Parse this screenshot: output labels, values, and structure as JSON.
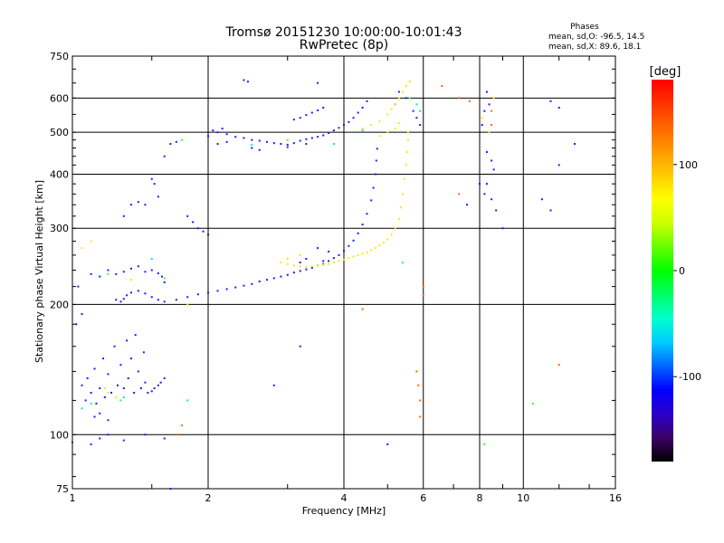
{
  "chart_data": {
    "type": "scatter",
    "title": "Tromsø 20151230 10:00:00-10:01:43",
    "subtitle": "RwPretec (8p)",
    "xlabel": "Frequency [MHz]",
    "ylabel": "Stationary phase Virtual Height [km]",
    "x_scale": "log",
    "y_scale": "log",
    "xlim": [
      1,
      16
    ],
    "ylim": [
      75,
      750
    ],
    "x_ticks": [
      1,
      2,
      4,
      6,
      8,
      10,
      16
    ],
    "x_tick_labels": [
      "1",
      "2",
      "4",
      "6",
      "8",
      "10",
      "16"
    ],
    "y_ticks": [
      75,
      100,
      200,
      300,
      400,
      500,
      600,
      750
    ],
    "y_tick_labels": [
      "75",
      "100",
      "200",
      "300",
      "400",
      "500",
      "600",
      "750"
    ],
    "grid": true,
    "stats": {
      "heading": "Phases",
      "line1": "mean, sd,O:  -96.5, 14.5",
      "line2": "mean, sd,X:  89.6, 18.1"
    },
    "colorbar": {
      "label": "[deg]",
      "range": [
        -180,
        180
      ],
      "ticks": [
        100,
        0,
        -100
      ],
      "tick_labels": [
        "100",
        "0",
        "-100"
      ],
      "colors": [
        "#000000",
        "#3d0066",
        "#2a00cc",
        "#0000ff",
        "#0066ff",
        "#00ccff",
        "#00ffcc",
        "#00ff66",
        "#00ff00",
        "#66ff00",
        "#ccff00",
        "#ffff00",
        "#ffcc00",
        "#ff9900",
        "#ff6600",
        "#ff3300",
        "#ff0000"
      ]
    },
    "series": [
      {
        "color": "#1a1aff",
        "phase": -100,
        "points": [
          [
            1.25,
            205
          ],
          [
            1.28,
            203
          ],
          [
            1.3,
            206
          ],
          [
            1.32,
            210
          ],
          [
            1.35,
            213
          ],
          [
            1.4,
            215
          ],
          [
            1.45,
            212
          ],
          [
            1.5,
            208
          ],
          [
            1.55,
            205
          ],
          [
            1.6,
            203
          ],
          [
            1.7,
            205
          ],
          [
            1.8,
            208
          ],
          [
            1.9,
            211
          ],
          [
            2.0,
            213
          ],
          [
            2.1,
            215
          ],
          [
            2.2,
            217
          ],
          [
            2.3,
            219
          ],
          [
            2.4,
            221
          ],
          [
            2.5,
            223
          ],
          [
            2.6,
            226
          ],
          [
            2.7,
            228
          ],
          [
            2.8,
            230
          ],
          [
            2.9,
            232
          ],
          [
            3.0,
            234
          ],
          [
            3.1,
            237
          ],
          [
            3.2,
            239
          ],
          [
            3.3,
            241
          ],
          [
            3.4,
            243
          ],
          [
            3.5,
            246
          ],
          [
            3.6,
            248
          ],
          [
            3.7,
            252
          ],
          [
            3.8,
            256
          ],
          [
            3.9,
            260
          ],
          [
            4.0,
            266
          ],
          [
            4.1,
            273
          ],
          [
            4.2,
            281
          ],
          [
            4.3,
            292
          ],
          [
            4.4,
            306
          ],
          [
            4.5,
            324
          ],
          [
            4.6,
            348
          ],
          [
            4.65,
            372
          ],
          [
            4.7,
            400
          ],
          [
            4.72,
            430
          ],
          [
            4.74,
            458
          ],
          [
            1.05,
            130
          ],
          [
            1.07,
            120
          ],
          [
            1.08,
            135
          ],
          [
            1.1,
            125
          ],
          [
            1.12,
            142
          ],
          [
            1.13,
            118
          ],
          [
            1.15,
            128
          ],
          [
            1.17,
            150
          ],
          [
            1.18,
            122
          ],
          [
            1.2,
            138
          ],
          [
            1.22,
            125
          ],
          [
            1.24,
            160
          ],
          [
            1.26,
            130
          ],
          [
            1.28,
            145
          ],
          [
            1.3,
            128
          ],
          [
            1.32,
            165
          ],
          [
            1.33,
            135
          ],
          [
            1.35,
            150
          ],
          [
            1.37,
            125
          ],
          [
            1.38,
            170
          ],
          [
            1.4,
            140
          ],
          [
            1.42,
            128
          ],
          [
            1.44,
            155
          ],
          [
            1.45,
            132
          ],
          [
            1.47,
            125
          ],
          [
            1.5,
            126
          ],
          [
            1.52,
            128
          ],
          [
            1.55,
            130
          ],
          [
            1.57,
            132
          ],
          [
            1.6,
            135
          ],
          [
            1.12,
            110
          ],
          [
            1.15,
            112
          ],
          [
            1.2,
            108
          ],
          [
            1.02,
            180
          ],
          [
            1.05,
            190
          ],
          [
            1.03,
            220
          ],
          [
            1.1,
            235
          ],
          [
            1.15,
            232
          ],
          [
            1.2,
            240
          ],
          [
            1.25,
            235
          ],
          [
            1.3,
            238
          ],
          [
            1.35,
            242
          ],
          [
            1.4,
            245
          ],
          [
            1.45,
            238
          ],
          [
            1.5,
            240
          ],
          [
            1.55,
            236
          ],
          [
            1.58,
            232
          ],
          [
            1.6,
            225
          ],
          [
            1.3,
            320
          ],
          [
            1.35,
            340
          ],
          [
            1.4,
            345
          ],
          [
            1.45,
            340
          ],
          [
            1.5,
            390
          ],
          [
            1.52,
            380
          ],
          [
            1.55,
            355
          ],
          [
            1.6,
            440
          ],
          [
            1.65,
            470
          ],
          [
            1.7,
            475
          ],
          [
            1.8,
            320
          ],
          [
            1.85,
            310
          ],
          [
            1.9,
            300
          ],
          [
            1.95,
            295
          ],
          [
            2.0,
            290
          ],
          [
            2.0,
            490
          ],
          [
            2.1,
            500
          ],
          [
            2.2,
            495
          ],
          [
            2.3,
            488
          ],
          [
            2.4,
            485
          ],
          [
            2.5,
            480
          ],
          [
            2.6,
            478
          ],
          [
            2.7,
            475
          ],
          [
            2.8,
            472
          ],
          [
            2.9,
            470
          ],
          [
            3.0,
            468
          ],
          [
            3.1,
            472
          ],
          [
            3.2,
            478
          ],
          [
            3.3,
            482
          ],
          [
            3.4,
            485
          ],
          [
            3.5,
            488
          ],
          [
            3.6,
            492
          ],
          [
            3.7,
            498
          ],
          [
            3.8,
            505
          ],
          [
            3.9,
            512
          ],
          [
            4.0,
            520
          ],
          [
            4.1,
            528
          ],
          [
            4.2,
            540
          ],
          [
            4.3,
            555
          ],
          [
            4.4,
            570
          ],
          [
            4.5,
            590
          ],
          [
            3.1,
            535
          ],
          [
            3.2,
            540
          ],
          [
            3.3,
            548
          ],
          [
            3.4,
            555
          ],
          [
            3.5,
            562
          ],
          [
            3.6,
            570
          ],
          [
            2.4,
            660
          ],
          [
            2.45,
            655
          ],
          [
            3.5,
            650
          ],
          [
            2.5,
            460
          ],
          [
            2.6,
            455
          ],
          [
            3.0,
            462
          ],
          [
            3.3,
            470
          ],
          [
            2.2,
            475
          ],
          [
            2.1,
            470
          ],
          [
            2.05,
            505
          ],
          [
            2.15,
            510
          ],
          [
            5.2,
            580
          ],
          [
            5.3,
            620
          ],
          [
            5.5,
            600
          ],
          [
            5.7,
            560
          ],
          [
            5.8,
            540
          ],
          [
            5.9,
            520
          ],
          [
            8.3,
            620
          ],
          [
            8.4,
            580
          ],
          [
            8.2,
            560
          ],
          [
            8.1,
            520
          ],
          [
            8.3,
            450
          ],
          [
            8.5,
            430
          ],
          [
            8.6,
            410
          ],
          [
            8.3,
            380
          ],
          [
            8.2,
            360
          ],
          [
            8.5,
            350
          ],
          [
            8.7,
            330
          ],
          [
            9.0,
            300
          ],
          [
            11.0,
            350
          ],
          [
            11.5,
            330
          ],
          [
            12.0,
            420
          ],
          [
            13.0,
            470
          ],
          [
            12.0,
            570
          ],
          [
            11.5,
            590
          ],
          [
            8.0,
            380
          ],
          [
            7.5,
            340
          ],
          [
            3.5,
            270
          ],
          [
            3.7,
            265
          ],
          [
            3.3,
            255
          ],
          [
            3.6,
            252
          ],
          [
            3.2,
            250
          ],
          [
            1.1,
            95
          ],
          [
            1.15,
            98
          ],
          [
            1.0,
            96
          ],
          [
            1.3,
            97
          ],
          [
            1.45,
            100
          ],
          [
            1.6,
            98
          ],
          [
            1.65,
            75
          ],
          [
            1.2,
            100
          ],
          [
            2.8,
            130
          ],
          [
            3.2,
            160
          ],
          [
            5.0,
            95
          ]
        ]
      },
      {
        "color": "#ffe600",
        "phase": 100,
        "points": [
          [
            2.9,
            250
          ],
          [
            3.0,
            248
          ],
          [
            3.1,
            246
          ],
          [
            3.2,
            245
          ],
          [
            3.3,
            244
          ],
          [
            3.4,
            245
          ],
          [
            3.5,
            246
          ],
          [
            3.6,
            247
          ],
          [
            3.7,
            248
          ],
          [
            3.8,
            250
          ],
          [
            3.9,
            252
          ],
          [
            4.0,
            254
          ],
          [
            4.1,
            256
          ],
          [
            4.2,
            258
          ],
          [
            4.3,
            260
          ],
          [
            4.4,
            262
          ],
          [
            4.5,
            264
          ],
          [
            4.6,
            267
          ],
          [
            4.7,
            270
          ],
          [
            4.8,
            274
          ],
          [
            4.9,
            278
          ],
          [
            5.0,
            283
          ],
          [
            5.1,
            290
          ],
          [
            5.2,
            300
          ],
          [
            5.3,
            315
          ],
          [
            5.35,
            335
          ],
          [
            5.4,
            360
          ],
          [
            5.45,
            390
          ],
          [
            5.5,
            420
          ],
          [
            5.52,
            450
          ],
          [
            5.55,
            480
          ],
          [
            5.55,
            500
          ],
          [
            4.4,
            510
          ],
          [
            4.6,
            520
          ],
          [
            4.8,
            530
          ],
          [
            5.0,
            550
          ],
          [
            5.1,
            565
          ],
          [
            5.2,
            580
          ],
          [
            5.3,
            600
          ],
          [
            5.4,
            620
          ],
          [
            5.5,
            640
          ],
          [
            5.6,
            655
          ],
          [
            8.4,
            500
          ],
          [
            8.1,
            540
          ],
          [
            8.6,
            600
          ],
          [
            3.0,
            255
          ],
          [
            3.2,
            260
          ],
          [
            5.0,
            500
          ],
          [
            4.8,
            490
          ],
          [
            5.2,
            510
          ],
          [
            5.3,
            525
          ],
          [
            1.2,
            125
          ],
          [
            1.25,
            122
          ],
          [
            1.18,
            128
          ],
          [
            1.35,
            228
          ],
          [
            1.05,
            270
          ],
          [
            1.1,
            280
          ],
          [
            1.8,
            200
          ]
        ]
      },
      {
        "color": "#00e5e5",
        "phase": -40,
        "points": [
          [
            1.05,
            115
          ],
          [
            1.1,
            118
          ],
          [
            1.3,
            122
          ],
          [
            1.5,
            255
          ],
          [
            2.5,
            468
          ],
          [
            4.4,
            505
          ],
          [
            5.8,
            580
          ],
          [
            5.9,
            560
          ],
          [
            1.8,
            120
          ],
          [
            3.8,
            470
          ]
        ]
      },
      {
        "color": "#33ff33",
        "phase": 20,
        "points": [
          [
            1.2,
            235
          ],
          [
            1.28,
            120
          ],
          [
            1.6,
            230
          ],
          [
            1.75,
            480
          ],
          [
            3.0,
            480
          ],
          [
            5.6,
            600
          ],
          [
            8.2,
            95
          ],
          [
            10.5,
            118
          ],
          [
            5.4,
            250
          ]
        ]
      },
      {
        "color": "#ff6600",
        "phase": 150,
        "points": [
          [
            6.6,
            640
          ],
          [
            7.2,
            600
          ],
          [
            7.6,
            590
          ],
          [
            8.5,
            520
          ],
          [
            8.5,
            560
          ],
          [
            6.0,
            220
          ],
          [
            6.0,
            210
          ],
          [
            5.8,
            140
          ],
          [
            5.85,
            130
          ],
          [
            5.9,
            120
          ],
          [
            5.9,
            110
          ],
          [
            4.4,
            195
          ],
          [
            7.2,
            360
          ],
          [
            12.0,
            145
          ],
          [
            1.75,
            105
          ],
          [
            1.7,
            100
          ]
        ]
      }
    ]
  }
}
